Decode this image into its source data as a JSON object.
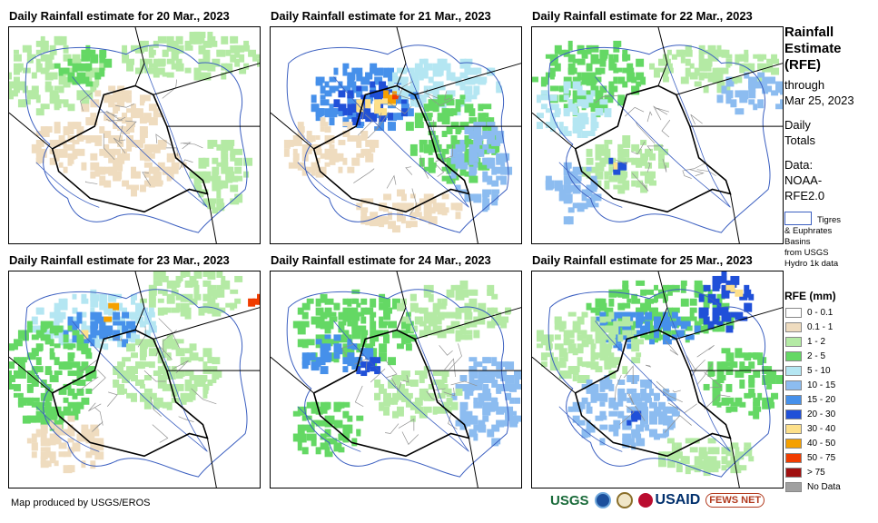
{
  "panels": [
    {
      "title": "Daily Rainfall estimate for 20 Mar., 2023",
      "date": "20 Mar., 2023"
    },
    {
      "title": "Daily Rainfall estimate for 21 Mar., 2023",
      "date": "21 Mar., 2023"
    },
    {
      "title": "Daily Rainfall estimate for 22 Mar., 2023",
      "date": "22 Mar., 2023"
    },
    {
      "title": "Daily Rainfall estimate for 23 Mar., 2023",
      "date": "23 Mar., 2023"
    },
    {
      "title": "Daily Rainfall estimate for 24 Mar., 2023",
      "date": "24 Mar., 2023"
    },
    {
      "title": "Daily Rainfall estimate for 25 Mar., 2023",
      "date": "25 Mar., 2023"
    }
  ],
  "side": {
    "title_lines": [
      "Rainfall",
      "Estimate",
      "(RFE)"
    ],
    "through_lines": [
      "through",
      "Mar 25, 2023"
    ],
    "daily_lines": [
      "Daily",
      "Totals"
    ],
    "data_lines": [
      "Data:",
      "NOAA-",
      "RFE2.0"
    ],
    "basin_lines": [
      "Tigres",
      "& Euphrates",
      "Basins",
      "from USGS",
      "Hydro 1k data"
    ]
  },
  "legend": {
    "title": "RFE (mm)",
    "items": [
      {
        "label": "0 - 0.1",
        "color": "#ffffff"
      },
      {
        "label": "0.1 - 1",
        "color": "#efdcbf"
      },
      {
        "label": "1 - 2",
        "color": "#b4eaa4"
      },
      {
        "label": "2 - 5",
        "color": "#64d864"
      },
      {
        "label": "5 - 10",
        "color": "#b4e6f2"
      },
      {
        "label": "10 - 15",
        "color": "#8cbcf0"
      },
      {
        "label": "15 - 20",
        "color": "#4690ea"
      },
      {
        "label": "20 - 30",
        "color": "#2050d8"
      },
      {
        "label": "30 - 40",
        "color": "#fde08a"
      },
      {
        "label": "40 - 50",
        "color": "#f5a000"
      },
      {
        "label": "50 - 75",
        "color": "#f03c00"
      },
      {
        "label": "> 75",
        "color": "#a01010"
      },
      {
        "label": "No Data",
        "color": "#a0a0a0"
      }
    ]
  },
  "footer": {
    "credit": "Map produced by USGS/EROS",
    "logos": [
      "USGS",
      "NOAA",
      "DOI",
      "USAID",
      "FEWS NET"
    ]
  },
  "colors": {
    "border": "#000000",
    "basin_outline": "#3b5fc0",
    "district_lines": "#909090"
  }
}
